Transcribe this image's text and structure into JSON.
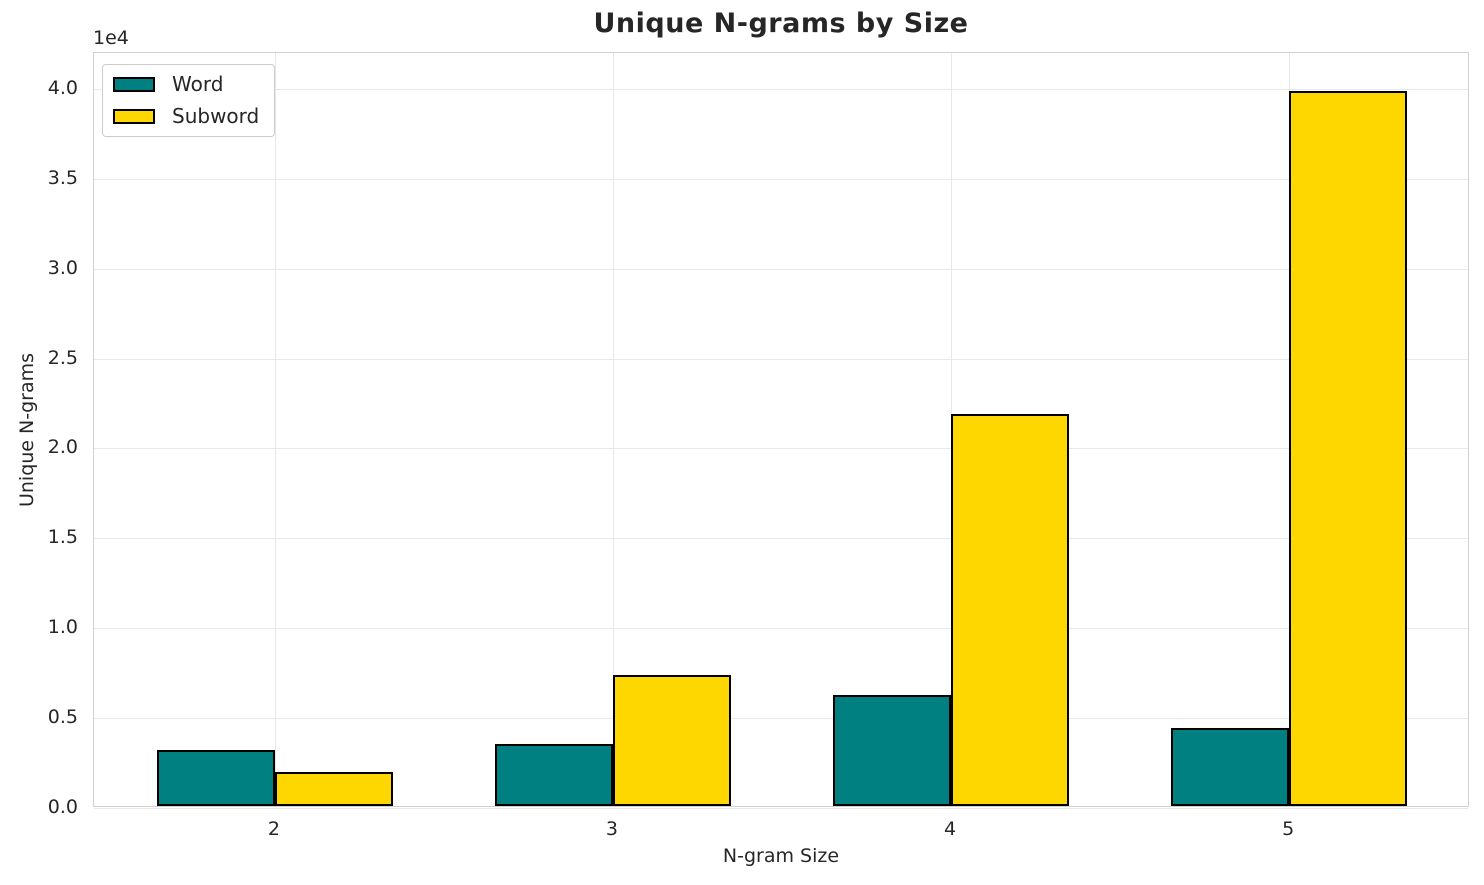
{
  "chart_data": {
    "type": "bar",
    "title": "Unique N-grams by Size",
    "xlabel": "N-gram Size",
    "ylabel": "Unique N-grams",
    "categories": [
      "2",
      "3",
      "4",
      "5"
    ],
    "x_positions": [
      2,
      3,
      4,
      5
    ],
    "series": [
      {
        "name": "Word",
        "color": "#008080",
        "values": [
          3100,
          3450,
          6200,
          4350
        ]
      },
      {
        "name": "Subword",
        "color": "#FFD700",
        "values": [
          1900,
          7300,
          21800,
          39800
        ]
      }
    ],
    "bar_width": 0.35,
    "bar_edge_color": "#000000",
    "xlim": [
      1.465,
      5.535
    ],
    "ylim": [
      0,
      42000
    ],
    "y_ticks": [
      0,
      5000,
      10000,
      15000,
      20000,
      25000,
      30000,
      35000,
      40000
    ],
    "y_tick_labels": [
      "0.0",
      "0.5",
      "1.0",
      "1.5",
      "2.0",
      "2.5",
      "3.0",
      "3.5",
      "4.0"
    ],
    "offset_text": "1e4",
    "grid": true,
    "legend_position": "upper left",
    "grid_color": "#e8e8e8",
    "spine_color": "#d0d0d0",
    "text_color": "#262626"
  }
}
